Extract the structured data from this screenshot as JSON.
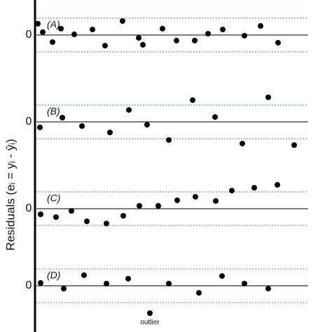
{
  "axis_label": "Residuals (eᵢ = yᵢ - ŷᵢ)",
  "chart_data": [
    {
      "type": "scatter",
      "title": "(A)",
      "xlim": [
        0,
        390
      ],
      "ylim": [
        -2,
        2
      ],
      "yticks": [
        0
      ],
      "bands": [
        -1,
        1
      ],
      "x": [
        4,
        11,
        25,
        37,
        56,
        82,
        100,
        125,
        148,
        154,
        182,
        202,
        228,
        247,
        268,
        299,
        322,
        347
      ],
      "values": [
        0.67,
        0.17,
        -0.42,
        0.38,
        0.04,
        0.33,
        -0.63,
        0.83,
        -0.17,
        -0.58,
        0.38,
        -0.33,
        -0.33,
        0.08,
        0.33,
        -0.04,
        0.54,
        -0.46
      ]
    },
    {
      "type": "scatter",
      "title": "(B)",
      "xlim": [
        0,
        390
      ],
      "ylim": [
        -2,
        2
      ],
      "yticks": [
        0
      ],
      "bands": [
        -1,
        1
      ],
      "x": [
        7,
        39,
        67,
        107,
        134,
        160,
        191,
        225,
        257,
        296,
        333,
        370
      ],
      "values": [
        -0.33,
        0.25,
        -0.25,
        -0.63,
        0.71,
        -0.17,
        -1.08,
        1.29,
        0.29,
        -1.29,
        1.46,
        -1.38
      ]
    },
    {
      "type": "scatter",
      "title": "(C)",
      "xlim": [
        0,
        390
      ],
      "ylim": [
        -2,
        2
      ],
      "yticks": [
        0
      ],
      "bands": [
        -1,
        1
      ],
      "x": [
        8,
        30,
        52,
        74,
        102,
        126,
        149,
        176,
        203,
        229,
        258,
        281,
        313,
        346
      ],
      "values": [
        -0.33,
        -0.5,
        -0.13,
        -0.75,
        -0.88,
        -0.42,
        0.17,
        0.17,
        0.5,
        0.71,
        0.46,
        1.08,
        1.25,
        1.42
      ]
    },
    {
      "type": "scatter",
      "title": "(D)",
      "xlim": [
        0,
        390
      ],
      "ylim": [
        -2,
        2
      ],
      "yticks": [
        0
      ],
      "bands": [
        -1,
        1
      ],
      "x": [
        8,
        41,
        70,
        102,
        133,
        164,
        191,
        234,
        267,
        299,
        333
      ],
      "values": [
        0.17,
        -0.17,
        0.63,
        0.13,
        0.42,
        -1.63,
        0.13,
        -0.42,
        0.58,
        0.13,
        -0.17
      ],
      "annotation": "outlier"
    }
  ]
}
